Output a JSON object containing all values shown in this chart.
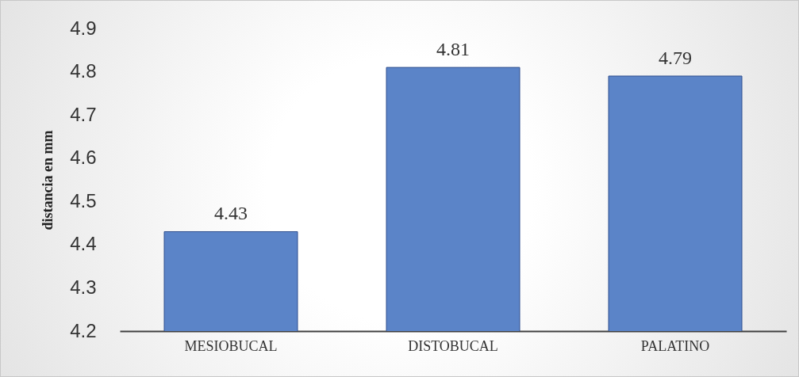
{
  "chart_data": {
    "type": "bar",
    "ylabel": "distancia en mm",
    "categories": [
      "MESIOBUCAL",
      "DISTOBUCAL",
      "PALATINO"
    ],
    "values": [
      4.43,
      4.81,
      4.79
    ],
    "color": "#5b84c8",
    "ylim": [
      4.2,
      4.9
    ],
    "yticks": [
      4.2,
      4.3,
      4.4,
      4.5,
      4.6,
      4.7,
      4.8,
      4.9
    ],
    "data_labels": true
  }
}
